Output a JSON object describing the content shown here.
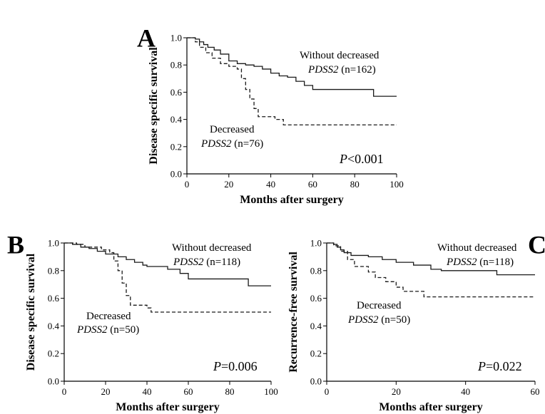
{
  "chart_data": [
    {
      "type": "line",
      "panel": "A",
      "xlabel": "Months after surgery",
      "ylabel": "Disease specific survival",
      "xlim": [
        0,
        100
      ],
      "ylim": [
        0,
        1.0
      ],
      "xticks": [
        "0",
        "20",
        "40",
        "60",
        "80",
        "100"
      ],
      "yticks": [
        "0.0",
        "0.2",
        "0.4",
        "0.6",
        "0.8",
        "1.0"
      ],
      "pvalue": {
        "p": "P",
        "rest": "<0.001"
      },
      "series": [
        {
          "style": "solid",
          "label_line1": "Without decreased",
          "label_gene": "PDSS2",
          "label_n": " (n=162)",
          "points": [
            [
              0,
              1.0
            ],
            [
              4,
              0.99
            ],
            [
              6,
              0.97
            ],
            [
              8,
              0.95
            ],
            [
              10,
              0.93
            ],
            [
              13,
              0.91
            ],
            [
              16,
              0.88
            ],
            [
              20,
              0.83
            ],
            [
              24,
              0.81
            ],
            [
              28,
              0.8
            ],
            [
              32,
              0.79
            ],
            [
              36,
              0.77
            ],
            [
              40,
              0.74
            ],
            [
              44,
              0.72
            ],
            [
              48,
              0.71
            ],
            [
              52,
              0.68
            ],
            [
              56,
              0.65
            ],
            [
              60,
              0.62
            ],
            [
              88,
              0.62
            ],
            [
              89,
              0.57
            ],
            [
              100,
              0.57
            ]
          ]
        },
        {
          "style": "dashed",
          "label_line1": "Decreased",
          "label_gene": "PDSS2",
          "label_n": " (n=76)",
          "points": [
            [
              0,
              1.0
            ],
            [
              4,
              0.97
            ],
            [
              6,
              0.93
            ],
            [
              9,
              0.89
            ],
            [
              12,
              0.85
            ],
            [
              16,
              0.81
            ],
            [
              20,
              0.79
            ],
            [
              24,
              0.77
            ],
            [
              26,
              0.7
            ],
            [
              28,
              0.62
            ],
            [
              30,
              0.55
            ],
            [
              32,
              0.48
            ],
            [
              34,
              0.42
            ],
            [
              42,
              0.4
            ],
            [
              46,
              0.36
            ],
            [
              100,
              0.36
            ]
          ]
        }
      ]
    },
    {
      "type": "line",
      "panel": "B",
      "xlabel": "Months after surgery",
      "ylabel": "Disease specific survival",
      "xlim": [
        0,
        100
      ],
      "ylim": [
        0,
        1.0
      ],
      "xticks": [
        "0",
        "20",
        "40",
        "60",
        "80",
        "100"
      ],
      "yticks": [
        "0.0",
        "0.2",
        "0.4",
        "0.6",
        "0.8",
        "1.0"
      ],
      "pvalue": {
        "p": "P",
        "rest": "=0.006"
      },
      "series": [
        {
          "style": "solid",
          "label_line1": "Without decreased",
          "label_gene": "PDSS2",
          "label_n": " (n=118)",
          "points": [
            [
              0,
              1.0
            ],
            [
              4,
              0.99
            ],
            [
              8,
              0.97
            ],
            [
              12,
              0.96
            ],
            [
              16,
              0.94
            ],
            [
              20,
              0.92
            ],
            [
              26,
              0.9
            ],
            [
              30,
              0.88
            ],
            [
              34,
              0.86
            ],
            [
              38,
              0.84
            ],
            [
              40,
              0.83
            ],
            [
              50,
              0.81
            ],
            [
              56,
              0.78
            ],
            [
              60,
              0.74
            ],
            [
              88,
              0.74
            ],
            [
              89,
              0.69
            ],
            [
              100,
              0.69
            ]
          ]
        },
        {
          "style": "dashed",
          "label_line1": "Decreased",
          "label_gene": "PDSS2",
          "label_n": " (n=50)",
          "points": [
            [
              0,
              1.0
            ],
            [
              6,
              0.99
            ],
            [
              10,
              0.97
            ],
            [
              18,
              0.95
            ],
            [
              22,
              0.93
            ],
            [
              24,
              0.87
            ],
            [
              26,
              0.8
            ],
            [
              28,
              0.71
            ],
            [
              30,
              0.62
            ],
            [
              32,
              0.55
            ],
            [
              40,
              0.53
            ],
            [
              42,
              0.5
            ],
            [
              100,
              0.5
            ]
          ]
        }
      ]
    },
    {
      "type": "line",
      "panel": "C",
      "xlabel": "Months after surgery",
      "ylabel": "Recurrence-free survival",
      "xlim": [
        0,
        60
      ],
      "ylim": [
        0,
        1.0
      ],
      "xticks": [
        "0",
        "20",
        "40",
        "60"
      ],
      "yticks": [
        "0.0",
        "0.2",
        "0.4",
        "0.6",
        "0.8",
        "1.0"
      ],
      "pvalue": {
        "p": "P",
        "rest": "=0.022"
      },
      "series": [
        {
          "style": "solid",
          "label_line1": "Without decreased",
          "label_gene": "PDSS2",
          "label_n": " (n=118)",
          "points": [
            [
              0,
              1.0
            ],
            [
              2,
              0.99
            ],
            [
              3,
              0.97
            ],
            [
              4,
              0.95
            ],
            [
              5,
              0.93
            ],
            [
              7,
              0.91
            ],
            [
              12,
              0.9
            ],
            [
              16,
              0.88
            ],
            [
              20,
              0.86
            ],
            [
              25,
              0.84
            ],
            [
              30,
              0.81
            ],
            [
              33,
              0.8
            ],
            [
              48,
              0.8
            ],
            [
              49,
              0.77
            ],
            [
              60,
              0.77
            ]
          ]
        },
        {
          "style": "dashed",
          "label_line1": "Decreased",
          "label_gene": "PDSS2",
          "label_n": " (n=50)",
          "points": [
            [
              0,
              1.0
            ],
            [
              2,
              0.98
            ],
            [
              4,
              0.94
            ],
            [
              6,
              0.88
            ],
            [
              8,
              0.83
            ],
            [
              12,
              0.79
            ],
            [
              14,
              0.75
            ],
            [
              17,
              0.72
            ],
            [
              20,
              0.68
            ],
            [
              22,
              0.65
            ],
            [
              28,
              0.61
            ],
            [
              60,
              0.61
            ]
          ]
        }
      ]
    }
  ]
}
